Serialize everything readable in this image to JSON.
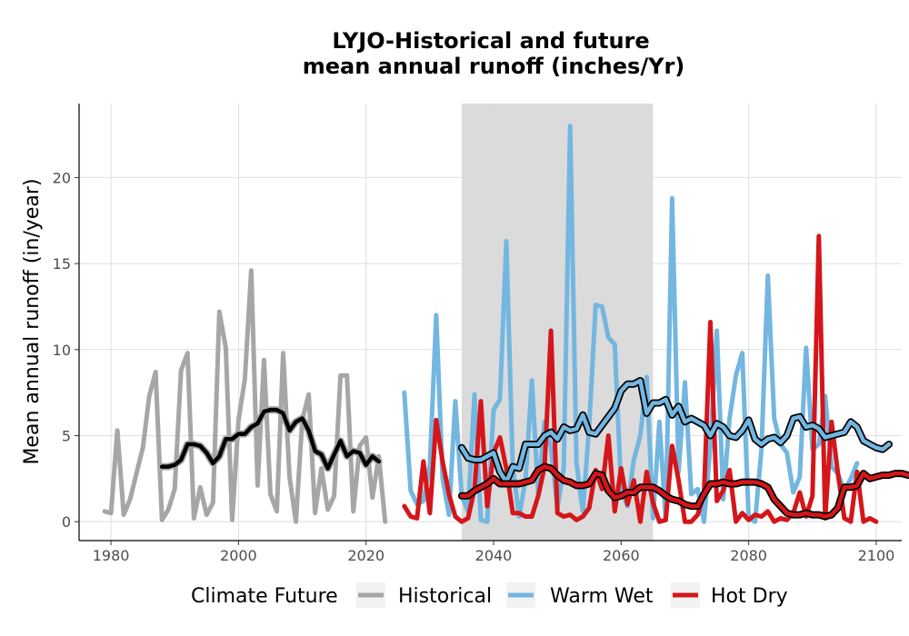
{
  "chart_data": {
    "type": "line",
    "title_lines": [
      "LYJO-Historical and future",
      "mean annual runoff (inches/Yr)"
    ],
    "xlabel": "",
    "ylabel": "Mean annual runoff (in/year)",
    "xlim": [
      1975,
      2104
    ],
    "ylim": [
      -1.1,
      24.3
    ],
    "xticks": [
      1980,
      2000,
      2020,
      2040,
      2060,
      2080,
      2100
    ],
    "yticks": [
      0,
      5,
      10,
      15,
      20
    ],
    "grid": true,
    "shaded_period": [
      2035,
      2065
    ],
    "legend": {
      "title": "Climate Future",
      "position": "bottom",
      "entries": [
        "Historical",
        "Warm Wet",
        "Hot Dry"
      ]
    },
    "series": [
      {
        "name": "Historical",
        "color": "#a6a6a6",
        "x_start": 1979,
        "values": [
          0.6,
          0.5,
          5.3,
          0.4,
          1.3,
          2.8,
          4.3,
          7.3,
          8.7,
          0.1,
          0.7,
          1.9,
          8.8,
          9.8,
          0.2,
          2.0,
          0.4,
          1.1,
          12.2,
          10.1,
          0.1,
          5.9,
          8.3,
          14.6,
          2.1,
          9.4,
          1.6,
          0.6,
          9.8,
          2.6,
          0.0,
          5.9,
          7.4,
          0.5,
          3.1,
          0.7,
          1.5,
          8.5,
          8.5,
          0.6,
          4.4,
          4.9,
          1.4,
          3.8,
          0.0
        ]
      },
      {
        "name": "Historical smoothed",
        "color": "#000000",
        "outline": "#a6a6a6",
        "x_start": 1988,
        "values": [
          3.2,
          3.2,
          3.3,
          3.6,
          4.5,
          4.5,
          4.4,
          4.0,
          3.4,
          3.8,
          4.8,
          4.8,
          5.1,
          5.1,
          5.5,
          5.7,
          6.4,
          6.5,
          6.5,
          6.3,
          5.3,
          5.8,
          6.0,
          5.3,
          4.1,
          3.9,
          3.1,
          3.9,
          4.7,
          3.8,
          4.1,
          4.0,
          3.3,
          3.8,
          3.5
        ]
      },
      {
        "name": "Warm Wet",
        "color": "#73b6e0",
        "x_start": 2026,
        "values": [
          7.5,
          1.8,
          1.0,
          1.2,
          3.3,
          12.0,
          2.5,
          0.4,
          7.0,
          1.5,
          0.6,
          7.4,
          0.1,
          0.0,
          6.5,
          7.1,
          16.3,
          3.2,
          0.3,
          2.4,
          8.2,
          1.6,
          5.8,
          4.3,
          0.8,
          3.1,
          23.0,
          3.4,
          0.6,
          5.6,
          12.6,
          12.5,
          10.7,
          10.3,
          1.9,
          0.9,
          3.6,
          5.0,
          8.4,
          0.2,
          5.8,
          0.1,
          18.8,
          2.9,
          8.1,
          1.6,
          1.9,
          0.0,
          4.4,
          11.1,
          1.3,
          6.0,
          8.5,
          9.8,
          0.2,
          0.0,
          4.2,
          14.3,
          6.0,
          4.5,
          4.0,
          1.7,
          2.6,
          10.1,
          4.2,
          4.5,
          7.3,
          3.2,
          2.8,
          1.8,
          2.5,
          3.4
        ]
      },
      {
        "name": "Warm Wet smoothed",
        "color": "#73b6e0",
        "outline": "#000000",
        "x_start": 2035,
        "values": [
          4.3,
          3.7,
          3.6,
          3.6,
          3.8,
          4.0,
          2.9,
          2.3,
          3.2,
          3.1,
          4.5,
          4.5,
          4.5,
          5.0,
          5.2,
          4.8,
          5.5,
          5.3,
          5.4,
          6.2,
          5.2,
          5.1,
          5.6,
          6.1,
          6.6,
          7.6,
          8.0,
          8.0,
          8.2,
          6.3,
          6.9,
          6.9,
          7.1,
          6.2,
          6.7,
          5.8,
          6.0,
          5.8,
          5.6,
          5.0,
          5.7,
          5.5,
          5.0,
          4.9,
          5.3,
          5.9,
          4.8,
          4.5,
          4.8,
          4.9,
          4.6,
          5.0,
          6.0,
          6.1,
          5.5,
          5.6,
          5.4,
          4.9,
          5.0,
          5.1,
          5.2,
          5.8,
          5.5,
          4.7,
          4.5,
          4.3,
          4.2,
          4.5
        ]
      },
      {
        "name": "Hot Dry",
        "color": "#d4161a",
        "x_start": 2026,
        "values": [
          0.9,
          0.3,
          0.2,
          3.5,
          0.5,
          5.9,
          3.5,
          1.6,
          0.3,
          0.0,
          0.2,
          1.9,
          7.0,
          0.9,
          4.0,
          4.9,
          3.1,
          0.5,
          0.5,
          0.3,
          0.3,
          1.5,
          3.2,
          11.1,
          0.5,
          0.3,
          0.4,
          0.1,
          0.3,
          0.8,
          3.0,
          1.9,
          5.0,
          0.6,
          3.1,
          1.0,
          2.4,
          0.0,
          2.9,
          1.1,
          0.0,
          0.1,
          4.4,
          2.4,
          0.0,
          0.0,
          0.4,
          1.6,
          11.6,
          1.2,
          1.8,
          3.0,
          0.0,
          0.5,
          0.1,
          0.4,
          0.3,
          0.6,
          0.0,
          0.2,
          0.1,
          0.5,
          1.7,
          0.3,
          1.5,
          16.6,
          0.2,
          5.8,
          2.8,
          0.2,
          0.0,
          2.9,
          0.0,
          0.2,
          0.0
        ]
      },
      {
        "name": "Hot Dry smoothed",
        "color": "#d4161a",
        "outline": "#000000",
        "x_start": 2035,
        "values": [
          1.5,
          1.5,
          1.8,
          2.0,
          2.2,
          2.5,
          2.2,
          2.2,
          2.2,
          2.2,
          2.3,
          2.4,
          3.0,
          3.2,
          3.1,
          2.7,
          2.4,
          2.3,
          2.1,
          2.1,
          2.2,
          2.8,
          2.7,
          1.8,
          1.4,
          1.5,
          1.7,
          1.7,
          2.0,
          2.0,
          2.0,
          1.8,
          1.5,
          1.3,
          1.2,
          1.0,
          0.9,
          0.9,
          1.6,
          2.2,
          2.2,
          2.3,
          2.2,
          2.2,
          2.3,
          2.3,
          2.3,
          2.2,
          2.0,
          1.3,
          0.9,
          0.5,
          0.4,
          0.4,
          0.5,
          0.4,
          0.4,
          0.3,
          0.4,
          0.8,
          2.0,
          2.0,
          2.1,
          2.8,
          2.5,
          2.6,
          2.7,
          2.7,
          2.8,
          2.8,
          2.7
        ]
      }
    ]
  }
}
